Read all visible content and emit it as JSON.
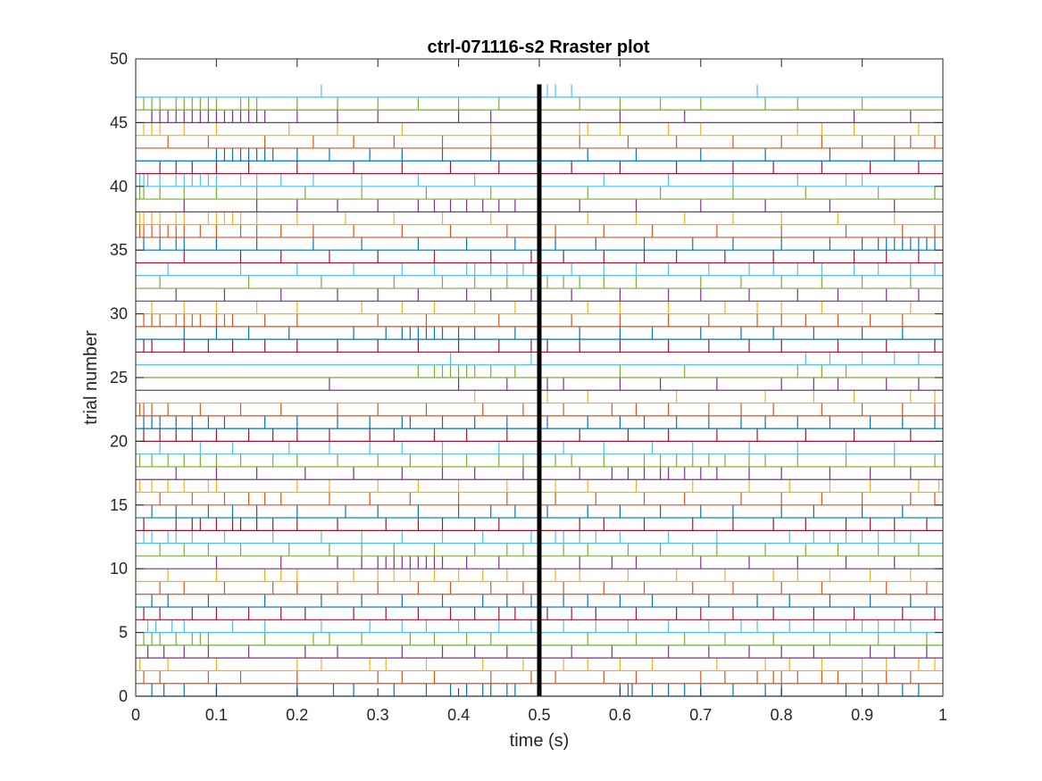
{
  "chart_data": {
    "type": "scatter",
    "style": "raster",
    "title": "ctrl-071116-s2 Rraster plot",
    "xlabel": "time (s)",
    "ylabel": "trial number",
    "xlim": [
      0,
      1
    ],
    "ylim": [
      0,
      50
    ],
    "xticks": [
      0,
      0.1,
      0.2,
      0.3,
      0.4,
      0.5,
      0.6,
      0.7,
      0.8,
      0.9,
      1
    ],
    "xtick_labels": [
      "0",
      "0.1",
      "0.2",
      "0.3",
      "0.4",
      "0.5",
      "0.6",
      "0.7",
      "0.8",
      "0.9",
      "1"
    ],
    "yticks": [
      0,
      5,
      10,
      15,
      20,
      25,
      30,
      35,
      40,
      45,
      50
    ],
    "ytick_labels": [
      "0",
      "5",
      "10",
      "15",
      "20",
      "25",
      "30",
      "35",
      "40",
      "45",
      "50"
    ],
    "grid": false,
    "legend": "none",
    "n_trials": 48,
    "trial_baseline": true,
    "color_cycle": [
      "#0072BD",
      "#D95319",
      "#EDB120",
      "#7E2F8E",
      "#77AC30",
      "#4DBEEE",
      "#A2142F"
    ],
    "stimulus_marker": {
      "x": 0.5,
      "y_range": [
        0,
        48
      ],
      "color": "#000000"
    },
    "trials": [
      [
        0.02,
        0.035,
        0.06,
        0.1,
        0.2,
        0.245,
        0.27,
        0.32,
        0.36,
        0.39,
        0.41,
        0.43,
        0.44,
        0.46,
        0.47,
        0.5,
        0.6,
        0.61,
        0.615,
        0.64,
        0.66,
        0.68,
        0.7,
        0.74,
        0.78,
        0.8,
        0.88,
        0.92,
        0.95,
        0.97
      ],
      [
        0.01,
        0.03,
        0.09,
        0.13,
        0.2,
        0.3,
        0.33,
        0.37,
        0.44,
        0.49,
        0.52,
        0.58,
        0.62,
        0.7,
        0.73,
        0.77,
        0.79,
        0.8,
        0.82,
        0.85,
        0.87,
        0.9,
        0.93,
        0.96
      ],
      [
        0.005,
        0.04,
        0.1,
        0.2,
        0.23,
        0.29,
        0.31,
        0.36,
        0.43,
        0.48,
        0.53,
        0.56,
        0.6,
        0.64,
        0.72,
        0.78,
        0.81,
        0.85,
        0.9,
        0.93,
        0.97,
        0.99
      ],
      [
        0.015,
        0.035,
        0.06,
        0.09,
        0.14,
        0.21,
        0.25,
        0.33,
        0.38,
        0.42,
        0.46,
        0.54,
        0.59,
        0.66,
        0.71,
        0.76,
        0.8,
        0.84,
        0.91,
        0.94,
        0.98
      ],
      [
        0.01,
        0.02,
        0.03,
        0.05,
        0.07,
        0.08,
        0.09,
        0.16,
        0.22,
        0.24,
        0.28,
        0.34,
        0.37,
        0.41,
        0.44,
        0.5,
        0.56,
        0.62,
        0.68,
        0.73,
        0.79,
        0.86,
        0.92,
        0.98
      ],
      [
        0.015,
        0.025,
        0.045,
        0.06,
        0.12,
        0.16,
        0.23,
        0.29,
        0.33,
        0.36,
        0.4,
        0.45,
        0.49,
        0.53,
        0.57,
        0.61,
        0.66,
        0.71,
        0.75,
        0.77,
        0.81,
        0.84,
        0.88,
        0.9,
        0.92,
        0.94,
        0.96
      ],
      [
        0.01,
        0.03,
        0.07,
        0.1,
        0.14,
        0.18,
        0.21,
        0.27,
        0.31,
        0.35,
        0.39,
        0.42,
        0.45,
        0.47,
        0.51,
        0.54,
        0.57,
        0.62,
        0.67,
        0.7,
        0.74,
        0.79,
        0.84,
        0.89,
        0.95,
        0.99
      ],
      [
        0.02,
        0.04,
        0.09,
        0.16,
        0.23,
        0.28,
        0.33,
        0.38,
        0.43,
        0.46,
        0.49,
        0.53,
        0.56,
        0.6,
        0.64,
        0.71,
        0.77,
        0.81,
        0.86,
        0.91,
        0.96
      ],
      [
        0.03,
        0.06,
        0.11,
        0.17,
        0.2,
        0.25,
        0.3,
        0.35,
        0.39,
        0.44,
        0.48,
        0.53,
        0.58,
        0.63,
        0.69,
        0.74,
        0.8,
        0.85,
        0.93,
        0.98
      ],
      [
        0.04,
        0.1,
        0.16,
        0.18,
        0.2,
        0.27,
        0.3,
        0.32,
        0.34,
        0.37,
        0.4,
        0.43,
        0.46,
        0.52,
        0.55,
        0.61,
        0.67,
        0.73,
        0.79,
        0.82,
        0.86,
        0.91,
        0.96
      ],
      [
        0.1,
        0.18,
        0.25,
        0.28,
        0.3,
        0.31,
        0.32,
        0.33,
        0.34,
        0.35,
        0.36,
        0.37,
        0.38,
        0.41,
        0.45,
        0.5,
        0.55,
        0.59,
        0.62,
        0.7,
        0.76,
        0.82,
        0.88,
        0.94
      ],
      [
        0.03,
        0.06,
        0.09,
        0.13,
        0.19,
        0.24,
        0.28,
        0.32,
        0.37,
        0.42,
        0.46,
        0.48,
        0.5,
        0.53,
        0.56,
        0.61,
        0.65,
        0.69,
        0.72,
        0.78,
        0.83,
        0.87,
        0.92,
        0.97
      ],
      [
        0.01,
        0.02,
        0.04,
        0.05,
        0.07,
        0.11,
        0.17,
        0.23,
        0.28,
        0.33,
        0.38,
        0.43,
        0.49,
        0.52,
        0.53,
        0.55,
        0.57,
        0.6,
        0.66,
        0.72,
        0.81,
        0.84,
        0.86,
        0.88,
        0.9,
        0.92,
        0.94,
        0.96
      ],
      [
        0.01,
        0.05,
        0.07,
        0.08,
        0.1,
        0.12,
        0.13,
        0.15,
        0.17,
        0.2,
        0.25,
        0.31,
        0.35,
        0.38,
        0.42,
        0.45,
        0.5,
        0.55,
        0.58,
        0.63,
        0.69,
        0.74,
        0.79,
        0.83,
        0.88,
        0.91,
        0.94,
        0.98
      ],
      [
        0.02,
        0.05,
        0.09,
        0.12,
        0.15,
        0.2,
        0.26,
        0.3,
        0.35,
        0.4,
        0.44,
        0.47,
        0.51,
        0.56,
        0.6,
        0.65,
        0.7,
        0.74,
        0.8,
        0.84,
        0.9,
        0.95
      ],
      [
        0.03,
        0.07,
        0.11,
        0.14,
        0.16,
        0.18,
        0.24,
        0.29,
        0.34,
        0.4,
        0.46,
        0.52,
        0.57,
        0.63,
        0.68,
        0.75,
        0.8,
        0.85,
        0.9,
        0.96,
        0.99
      ],
      [
        0.005,
        0.02,
        0.04,
        0.06,
        0.09,
        0.1,
        0.2,
        0.24,
        0.3,
        0.35,
        0.4,
        0.46,
        0.52,
        0.56,
        0.62,
        0.69,
        0.76,
        0.81,
        0.86,
        0.91,
        0.97,
        0.995
      ],
      [
        0.05,
        0.1,
        0.15,
        0.21,
        0.27,
        0.33,
        0.38,
        0.42,
        0.48,
        0.55,
        0.59,
        0.61,
        0.63,
        0.65,
        0.66,
        0.68,
        0.7,
        0.72,
        0.76,
        0.8,
        0.86,
        0.91,
        0.96
      ],
      [
        0.005,
        0.02,
        0.04,
        0.06,
        0.08,
        0.1,
        0.13,
        0.17,
        0.2,
        0.25,
        0.3,
        0.34,
        0.38,
        0.41,
        0.45,
        0.48,
        0.5,
        0.52,
        0.54,
        0.58,
        0.63,
        0.65,
        0.67,
        0.69,
        0.71,
        0.73,
        0.76,
        0.78,
        0.82,
        0.88,
        0.94,
        0.99
      ],
      [
        0.03,
        0.08,
        0.12,
        0.19,
        0.24,
        0.29,
        0.33,
        0.38,
        0.45,
        0.5,
        0.53,
        0.58,
        0.64,
        0.69,
        0.76,
        0.82,
        0.88,
        0.94
      ],
      [
        0.01,
        0.03,
        0.05,
        0.07,
        0.1,
        0.14,
        0.17,
        0.2,
        0.24,
        0.29,
        0.32,
        0.37,
        0.41,
        0.46,
        0.5,
        0.55,
        0.61,
        0.66,
        0.72,
        0.77,
        0.83,
        0.89,
        0.96
      ],
      [
        0.01,
        0.02,
        0.03,
        0.05,
        0.07,
        0.09,
        0.11,
        0.16,
        0.2,
        0.25,
        0.29,
        0.33,
        0.34,
        0.38,
        0.42,
        0.46,
        0.51,
        0.56,
        0.6,
        0.63,
        0.67,
        0.71,
        0.75,
        0.78,
        0.82,
        0.86,
        0.91,
        0.95,
        0.99
      ],
      [
        0.005,
        0.01,
        0.02,
        0.04,
        0.08,
        0.13,
        0.18,
        0.25,
        0.3,
        0.36,
        0.43,
        0.48,
        0.53,
        0.59,
        0.62,
        0.66,
        0.71,
        0.75,
        0.79,
        0.85,
        0.9,
        0.95,
        0.99
      ],
      [
        0.42,
        0.51,
        0.56,
        0.67,
        0.78,
        0.84,
        0.89,
        0.96,
        0.99
      ],
      [
        0.24,
        0.4,
        0.46,
        0.51,
        0.53,
        0.6,
        0.65,
        0.72,
        0.8,
        0.84,
        0.87,
        0.93,
        0.97
      ],
      [
        0.35,
        0.37,
        0.38,
        0.39,
        0.4,
        0.41,
        0.42,
        0.44,
        0.47,
        0.6,
        0.68,
        0.82,
        0.85,
        0.88
      ],
      [
        0.39,
        0.49,
        0.83,
        0.86,
        0.9,
        0.94,
        0.97
      ],
      [
        0.01,
        0.02,
        0.06,
        0.09,
        0.12,
        0.16,
        0.2,
        0.25,
        0.3,
        0.35,
        0.4,
        0.45,
        0.49,
        0.51,
        0.55,
        0.6,
        0.66,
        0.71,
        0.76,
        0.8,
        0.87,
        0.93,
        0.99
      ],
      [
        0.06,
        0.1,
        0.14,
        0.19,
        0.27,
        0.31,
        0.33,
        0.34,
        0.35,
        0.36,
        0.37,
        0.38,
        0.4,
        0.42,
        0.47,
        0.5,
        0.55,
        0.6,
        0.64,
        0.7,
        0.75,
        0.79,
        0.84,
        0.9,
        0.95
      ],
      [
        0.01,
        0.02,
        0.03,
        0.05,
        0.06,
        0.07,
        0.08,
        0.1,
        0.11,
        0.12,
        0.16,
        0.2,
        0.3,
        0.36,
        0.45,
        0.5,
        0.54,
        0.6,
        0.66,
        0.71,
        0.77,
        0.8,
        0.83,
        0.87,
        0.91,
        0.95
      ],
      [
        0.02,
        0.06,
        0.1,
        0.15,
        0.2,
        0.28,
        0.33,
        0.37,
        0.42,
        0.47,
        0.5,
        0.56,
        0.6,
        0.66,
        0.73,
        0.77,
        0.8,
        0.85,
        0.9,
        0.96
      ],
      [
        0.05,
        0.11,
        0.18,
        0.25,
        0.3,
        0.35,
        0.41,
        0.44,
        0.49,
        0.54,
        0.6,
        0.66,
        0.7,
        0.76,
        0.82,
        0.87,
        0.93,
        0.97
      ],
      [
        0.03,
        0.14,
        0.23,
        0.32,
        0.38,
        0.42,
        0.46,
        0.51,
        0.53,
        0.55,
        0.58,
        0.62,
        0.7,
        0.75,
        0.8,
        0.85,
        0.9,
        0.96
      ],
      [
        0.04,
        0.13,
        0.2,
        0.27,
        0.33,
        0.37,
        0.41,
        0.42,
        0.44,
        0.46,
        0.48,
        0.5,
        0.54,
        0.58,
        0.62,
        0.66,
        0.71,
        0.76,
        0.79,
        0.82,
        0.85,
        0.89,
        0.92,
        0.96,
        0.99
      ],
      [
        0.06,
        0.13,
        0.18,
        0.24,
        0.3,
        0.37,
        0.44,
        0.49,
        0.53,
        0.58,
        0.63,
        0.67,
        0.73,
        0.79,
        0.84,
        0.89,
        0.93,
        0.97
      ],
      [
        0.01,
        0.03,
        0.05,
        0.06,
        0.1,
        0.15,
        0.22,
        0.28,
        0.35,
        0.41,
        0.47,
        0.52,
        0.57,
        0.63,
        0.69,
        0.74,
        0.8,
        0.86,
        0.9,
        0.92,
        0.93,
        0.94,
        0.95,
        0.96,
        0.97,
        0.98,
        0.99
      ],
      [
        0.005,
        0.01,
        0.02,
        0.03,
        0.04,
        0.05,
        0.06,
        0.08,
        0.1,
        0.13,
        0.15,
        0.18,
        0.22,
        0.27,
        0.33,
        0.39,
        0.46,
        0.52,
        0.58,
        0.64,
        0.72,
        0.8,
        0.88,
        0.95,
        0.99
      ],
      [
        0.005,
        0.01,
        0.02,
        0.03,
        0.05,
        0.06,
        0.09,
        0.1,
        0.11,
        0.12,
        0.13,
        0.15,
        0.2,
        0.26,
        0.32,
        0.38,
        0.44,
        0.5,
        0.56,
        0.62,
        0.68,
        0.74,
        0.8,
        0.87,
        0.94
      ],
      [
        0.06,
        0.15,
        0.2,
        0.25,
        0.3,
        0.35,
        0.37,
        0.39,
        0.41,
        0.43,
        0.45,
        0.47,
        0.5,
        0.55,
        0.62,
        0.7,
        0.78,
        0.86,
        0.94
      ],
      [
        0.005,
        0.01,
        0.03,
        0.06,
        0.1,
        0.15,
        0.21,
        0.28,
        0.36,
        0.44,
        0.5,
        0.56,
        0.65,
        0.74,
        0.83,
        0.92,
        0.99
      ],
      [
        0.005,
        0.01,
        0.015,
        0.03,
        0.05,
        0.06,
        0.07,
        0.08,
        0.09,
        0.1,
        0.13,
        0.15,
        0.18,
        0.22,
        0.28,
        0.35,
        0.42,
        0.5,
        0.58,
        0.66,
        0.74,
        0.82,
        0.88,
        0.9
      ],
      [
        0.03,
        0.05,
        0.07,
        0.1,
        0.14,
        0.2,
        0.27,
        0.33,
        0.39,
        0.45,
        0.5,
        0.54,
        0.6,
        0.67,
        0.74,
        0.79,
        0.85,
        0.91,
        0.97
      ],
      [
        0.1,
        0.11,
        0.12,
        0.13,
        0.14,
        0.15,
        0.16,
        0.17,
        0.2,
        0.24,
        0.29,
        0.33,
        0.38,
        0.44,
        0.5,
        0.56,
        0.62,
        0.7,
        0.78,
        0.86,
        0.94
      ],
      [
        0.04,
        0.09,
        0.16,
        0.22,
        0.27,
        0.32,
        0.38,
        0.44,
        0.5,
        0.55,
        0.61,
        0.67,
        0.74,
        0.8,
        0.85,
        0.9,
        0.94,
        0.96,
        0.99
      ],
      [
        0.01,
        0.02,
        0.03,
        0.06,
        0.1,
        0.19,
        0.25,
        0.33,
        0.44,
        0.5,
        0.55,
        0.56,
        0.6,
        0.66,
        0.7,
        0.82,
        0.85,
        0.89,
        0.97
      ],
      [
        0.02,
        0.03,
        0.04,
        0.05,
        0.06,
        0.07,
        0.08,
        0.09,
        0.1,
        0.11,
        0.12,
        0.13,
        0.14,
        0.15,
        0.16,
        0.2,
        0.25,
        0.3,
        0.4,
        0.44,
        0.5,
        0.6,
        0.68,
        0.89,
        0.96
      ],
      [
        0.01,
        0.02,
        0.03,
        0.05,
        0.06,
        0.07,
        0.08,
        0.09,
        0.1,
        0.13,
        0.14,
        0.15,
        0.2,
        0.25,
        0.3,
        0.35,
        0.4,
        0.45,
        0.5,
        0.55,
        0.6,
        0.65,
        0.7,
        0.78,
        0.82,
        0.9
      ],
      [
        0.23,
        0.5,
        0.51,
        0.52,
        0.54,
        0.77
      ]
    ]
  }
}
